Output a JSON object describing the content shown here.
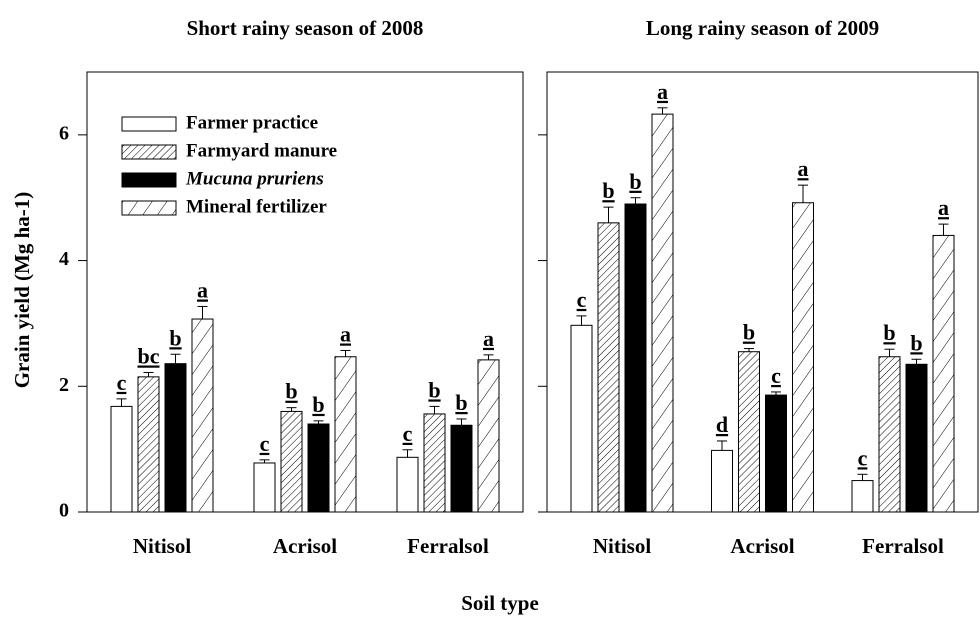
{
  "chart_data": [
    {
      "type": "bar",
      "title": "Short rainy season of 2008",
      "ylabel": "Grain yield (Mg ha-1)",
      "xlabel": "Soil type",
      "categories": [
        "Nitisol",
        "Acrisol",
        "Ferralsol"
      ],
      "ylim": [
        0,
        7
      ],
      "yticks": [
        0,
        2,
        4,
        6
      ],
      "show_ytick_labels": true,
      "legend": "upper left",
      "series": [
        {
          "name": "Farmer practice",
          "color": "#ffffff",
          "hatch": "none",
          "values": [
            1.68,
            0.78,
            0.87
          ],
          "errors": [
            0.12,
            0.05,
            0.12
          ],
          "letters": [
            "c",
            "c",
            "c"
          ]
        },
        {
          "name": "Farmyard manure",
          "color": "#ffffff",
          "hatch": "dense",
          "values": [
            2.15,
            1.6,
            1.56
          ],
          "errors": [
            0.07,
            0.06,
            0.12
          ],
          "letters": [
            "bc",
            "b",
            "b"
          ]
        },
        {
          "name": "Mucuna pruriens",
          "color": "#000000",
          "hatch": "none",
          "italic": true,
          "values": [
            2.36,
            1.4,
            1.38
          ],
          "errors": [
            0.15,
            0.05,
            0.1
          ],
          "letters": [
            "b",
            "b",
            "b"
          ]
        },
        {
          "name": "Mineral fertilizer",
          "color": "#ffffff",
          "hatch": "sparse",
          "values": [
            3.07,
            2.47,
            2.42
          ],
          "errors": [
            0.2,
            0.1,
            0.08
          ],
          "letters": [
            "a",
            "a",
            "a"
          ]
        }
      ]
    },
    {
      "type": "bar",
      "title": "Long rainy season of 2009",
      "categories": [
        "Nitisol",
        "Acrisol",
        "Ferralsol"
      ],
      "ylim": [
        0,
        7
      ],
      "yticks": [
        0,
        2,
        4,
        6
      ],
      "show_ytick_labels": false,
      "series": [
        {
          "color": "#ffffff",
          "hatch": "none",
          "values": [
            2.97,
            0.98,
            0.5
          ],
          "errors": [
            0.15,
            0.15,
            0.1
          ],
          "letters": [
            "c",
            "d",
            "c"
          ]
        },
        {
          "color": "#ffffff",
          "hatch": "dense",
          "values": [
            4.6,
            2.55,
            2.47
          ],
          "errors": [
            0.25,
            0.05,
            0.12
          ],
          "letters": [
            "b",
            "b",
            "b"
          ]
        },
        {
          "color": "#000000",
          "hatch": "none",
          "values": [
            4.9,
            1.86,
            2.35
          ],
          "errors": [
            0.1,
            0.05,
            0.08
          ],
          "letters": [
            "b",
            "c",
            "b"
          ]
        },
        {
          "color": "#ffffff",
          "hatch": "sparse",
          "values": [
            6.33,
            4.92,
            4.4
          ],
          "errors": [
            0.1,
            0.28,
            0.18
          ],
          "letters": [
            "a",
            "a",
            "a"
          ]
        }
      ]
    }
  ]
}
